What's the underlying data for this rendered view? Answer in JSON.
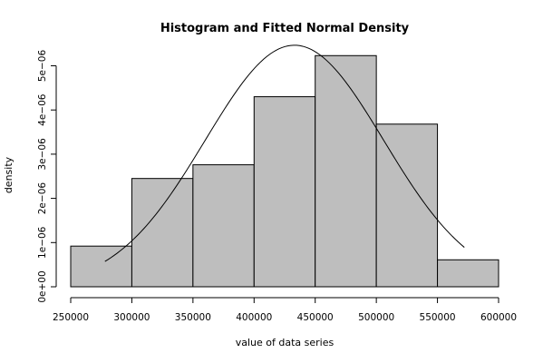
{
  "chart_data": {
    "type": "bar",
    "title": "Histogram and Fitted Normal Density",
    "xlabel": "value of data series",
    "ylabel": "density",
    "xlim": [
      250000,
      600000
    ],
    "ylim": [
      0,
      5.4e-06
    ],
    "x_ticks": [
      250000,
      300000,
      350000,
      400000,
      450000,
      500000,
      550000,
      600000
    ],
    "x_tick_labels": [
      "250000",
      "300000",
      "350000",
      "400000",
      "450000",
      "500000",
      "550000",
      "600000"
    ],
    "y_ticks": [
      0,
      1e-06,
      2e-06,
      3e-06,
      4e-06,
      5e-06
    ],
    "y_tick_labels": [
      "0e+00",
      "1e−06",
      "2e−06",
      "3e−06",
      "4e−06",
      "5e−06"
    ],
    "bins": [
      {
        "start": 250000,
        "end": 300000,
        "density": 9.2e-07
      },
      {
        "start": 300000,
        "end": 350000,
        "density": 2.45e-06
      },
      {
        "start": 350000,
        "end": 400000,
        "density": 2.76e-06
      },
      {
        "start": 400000,
        "end": 450000,
        "density": 4.3e-06
      },
      {
        "start": 450000,
        "end": 500000,
        "density": 5.23e-06
      },
      {
        "start": 500000,
        "end": 550000,
        "density": 3.68e-06
      },
      {
        "start": 550000,
        "end": 600000,
        "density": 6.1e-07
      }
    ],
    "fitted_normal": {
      "mean": 433000,
      "sd": 73000,
      "x_range": [
        278000,
        572000
      ]
    },
    "grid": false,
    "legend": "none"
  }
}
